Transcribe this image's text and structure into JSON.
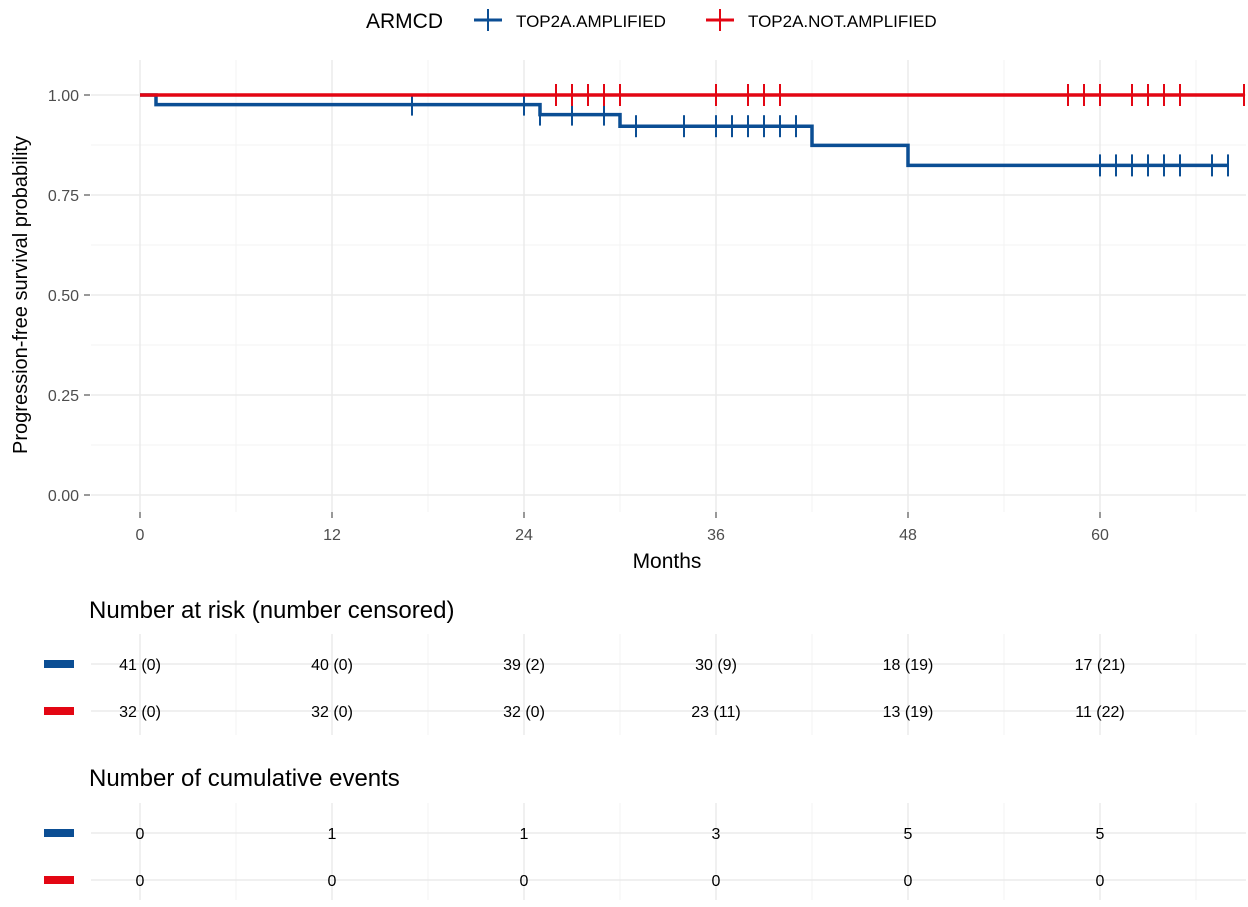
{
  "legend": {
    "title": "ARMCD",
    "entries": [
      "TOP2A.AMPLIFIED",
      "TOP2A.NOT.AMPLIFIED"
    ]
  },
  "colors": {
    "TOP2A.AMPLIFIED": "#0b4e94",
    "TOP2A.NOT.AMPLIFIED": "#e30613",
    "grid": "#ebebeb",
    "text": "#4d4d4d"
  },
  "chart_data": [
    {
      "type": "line",
      "title": "",
      "xlabel": "Months",
      "ylabel": "Progression-free survival probability",
      "xlim": [
        0,
        69
      ],
      "ylim": [
        0,
        1
      ],
      "x_ticks": [
        0,
        12,
        24,
        36,
        48,
        60
      ],
      "y_ticks": [
        0,
        0.25,
        0.5,
        0.75,
        1.0
      ],
      "y_tick_labels": [
        "0.00",
        "0.25",
        "0.50",
        "0.75",
        "1.00"
      ],
      "grid": true,
      "legend_position": "top",
      "series": [
        {
          "name": "TOP2A.AMPLIFIED",
          "steps": [
            {
              "t": 0,
              "s": 1.0
            },
            {
              "t": 1,
              "s": 0.976
            },
            {
              "t": 25,
              "s": 0.951
            },
            {
              "t": 30,
              "s": 0.922
            },
            {
              "t": 42,
              "s": 0.874
            },
            {
              "t": 48,
              "s": 0.824
            }
          ],
          "end": 68,
          "censored": [
            17,
            24,
            25,
            27,
            29,
            31,
            34,
            36,
            37,
            38,
            39,
            40,
            41,
            60,
            61,
            62,
            63,
            64,
            65,
            67,
            68
          ]
        },
        {
          "name": "TOP2A.NOT.AMPLIFIED",
          "steps": [
            {
              "t": 0,
              "s": 1.0
            }
          ],
          "end": 69,
          "censored": [
            26,
            27,
            28,
            29,
            30,
            36,
            38,
            39,
            40,
            58,
            59,
            60,
            62,
            63,
            64,
            65,
            69
          ]
        }
      ]
    },
    {
      "type": "table",
      "title": "Number at risk (number censored)",
      "time_points": [
        0,
        12,
        24,
        36,
        48,
        60
      ],
      "rows": [
        {
          "series": "TOP2A.AMPLIFIED",
          "values": [
            "41 (0)",
            "40 (0)",
            "39 (2)",
            "30 (9)",
            "18 (19)",
            "17 (21)"
          ]
        },
        {
          "series": "TOP2A.NOT.AMPLIFIED",
          "values": [
            "32 (0)",
            "32 (0)",
            "32 (0)",
            "23 (11)",
            "13 (19)",
            "11 (22)"
          ]
        }
      ]
    },
    {
      "type": "table",
      "title": "Number of cumulative events",
      "time_points": [
        0,
        12,
        24,
        36,
        48,
        60
      ],
      "rows": [
        {
          "series": "TOP2A.AMPLIFIED",
          "values": [
            "0",
            "1",
            "1",
            "3",
            "5",
            "5"
          ]
        },
        {
          "series": "TOP2A.NOT.AMPLIFIED",
          "values": [
            "0",
            "0",
            "0",
            "0",
            "0",
            "0"
          ]
        }
      ]
    }
  ]
}
